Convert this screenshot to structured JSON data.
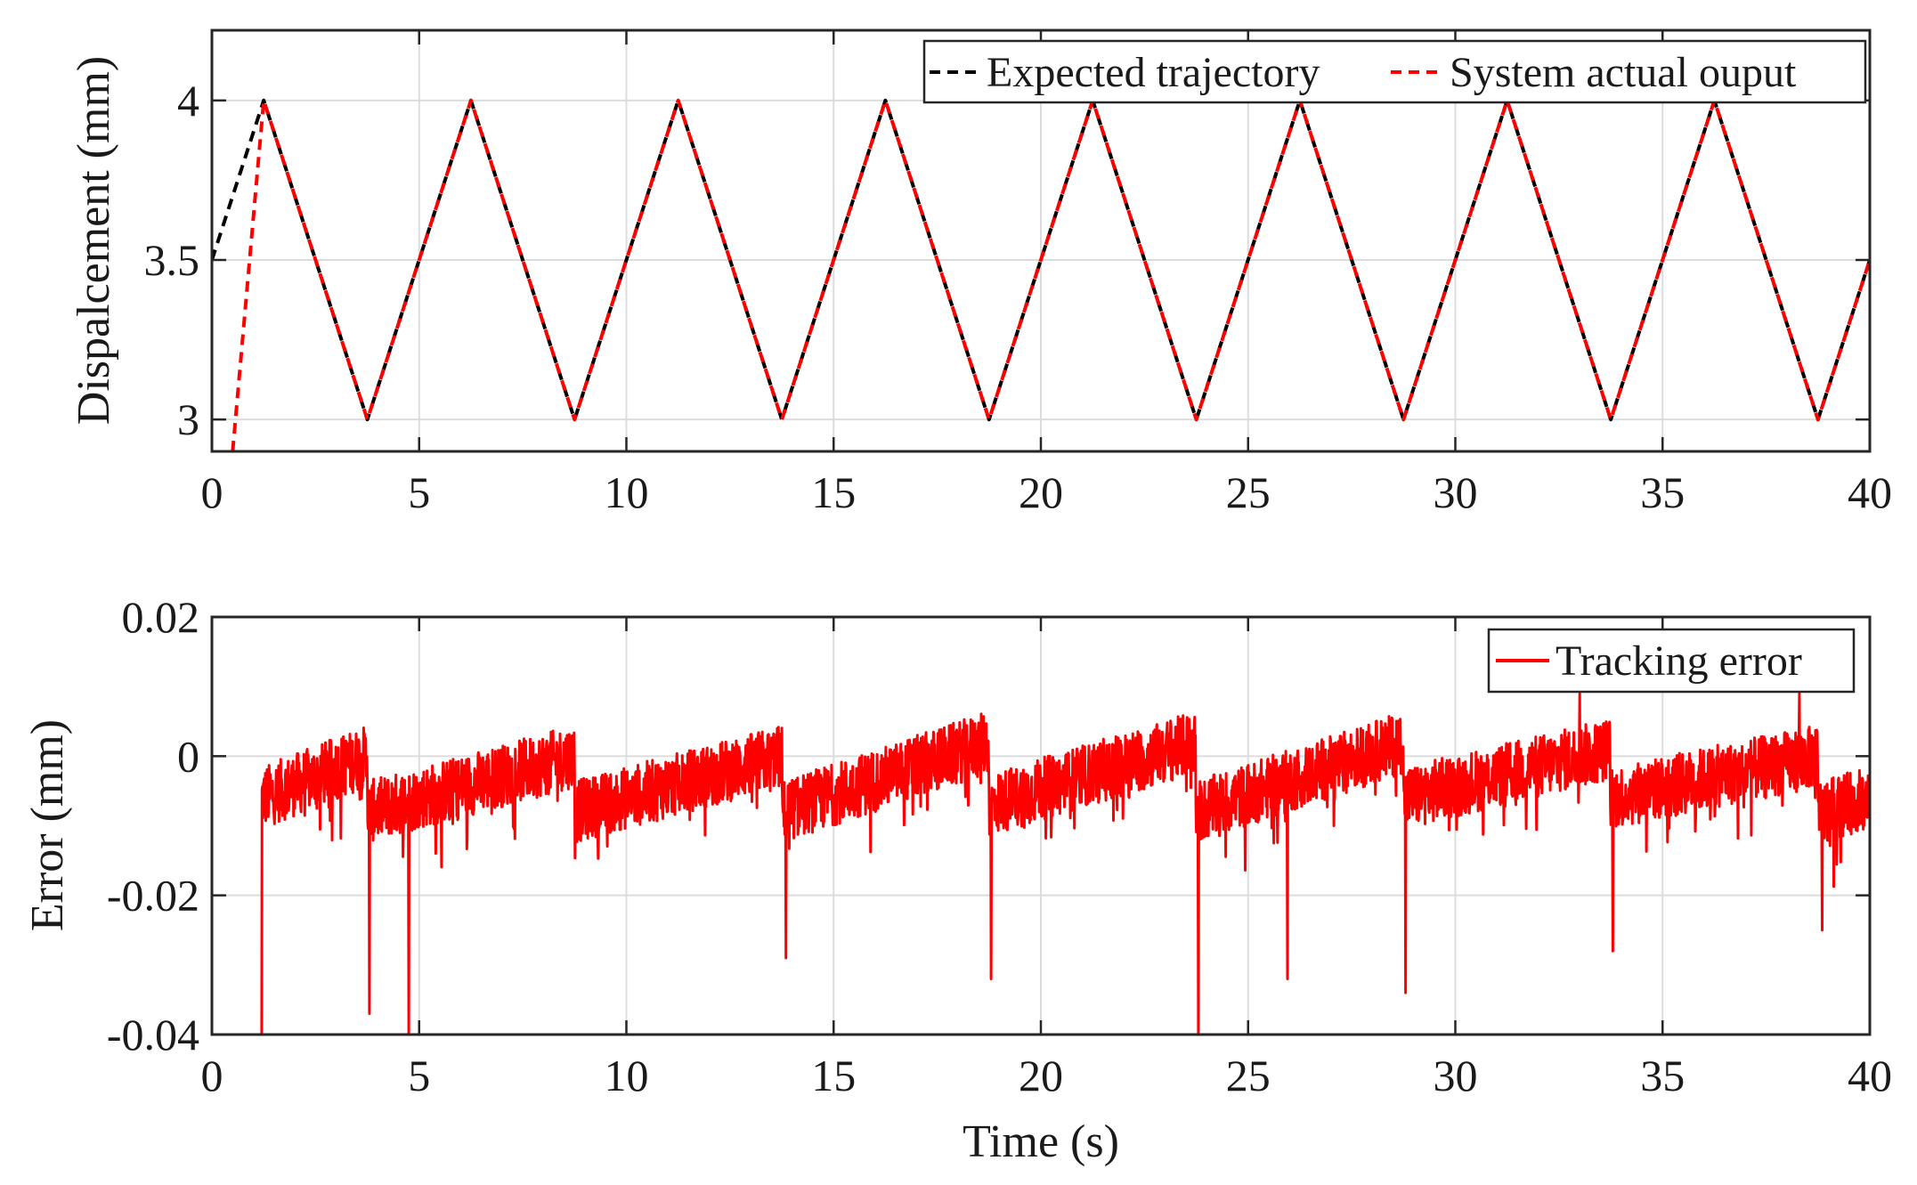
{
  "chart_data": [
    {
      "type": "line",
      "ylabel": "Dispalcement (mm)",
      "xlabel": "",
      "xlim": [
        0,
        40
      ],
      "ylim": [
        2.9,
        4.22
      ],
      "xticks": [
        0,
        5,
        10,
        15,
        20,
        25,
        30,
        35,
        40
      ],
      "xtick_labels": [
        "0",
        "5",
        "10",
        "15",
        "20",
        "25",
        "30",
        "35",
        "40"
      ],
      "yticks": [
        3,
        3.5,
        4
      ],
      "ytick_labels": [
        "3",
        "3.5",
        "4"
      ],
      "grid": true,
      "legend_position": "top-right",
      "series": [
        {
          "name": "Expected trajectory",
          "color": "#000000",
          "style": "dashed",
          "x": [
            0,
            1.25,
            3.75,
            6.25,
            8.75,
            11.25,
            13.75,
            16.25,
            18.75,
            21.25,
            23.75,
            26.25,
            28.75,
            31.25,
            33.75,
            36.25,
            38.75,
            40
          ],
          "y": [
            3.5,
            4,
            3,
            4,
            3,
            4,
            3,
            4,
            3,
            4,
            3,
            4,
            3,
            4,
            3,
            4,
            3,
            3.5
          ]
        },
        {
          "name": "System actual ouput",
          "color": "#ff0000",
          "style": "dashed",
          "x": [
            0.5,
            1.25,
            3.75,
            6.25,
            8.75,
            11.25,
            13.75,
            16.25,
            18.75,
            21.25,
            23.75,
            26.25,
            28.75,
            31.25,
            33.75,
            36.25,
            38.75,
            40
          ],
          "y": [
            2.9,
            4,
            3,
            4,
            3,
            4,
            3,
            4,
            3,
            4,
            3,
            4,
            3,
            4,
            3,
            4,
            3,
            3.5
          ]
        }
      ]
    },
    {
      "type": "line",
      "ylabel": "Error (mm)",
      "xlabel": "Time (s)",
      "xlim": [
        0,
        40
      ],
      "ylim": [
        -0.04,
        0.02
      ],
      "xticks": [
        0,
        5,
        10,
        15,
        20,
        25,
        30,
        35,
        40
      ],
      "xtick_labels": [
        "0",
        "5",
        "10",
        "15",
        "20",
        "25",
        "30",
        "35",
        "40"
      ],
      "yticks": [
        -0.04,
        -0.02,
        0,
        0.02
      ],
      "ytick_labels": [
        "-0.04",
        "-0.02",
        "0",
        "0.02"
      ],
      "grid": true,
      "legend_position": "top-right",
      "series": [
        {
          "name": "Tracking error",
          "color": "#ff0000",
          "style": "solid",
          "x_start": 1.2,
          "x_end": 40,
          "period": 2.5,
          "noise_amplitude": 0.0045,
          "ramp_segments": [
            {
              "x_start": 1.2,
              "x_end": 3.75,
              "y_start": -0.006,
              "y_end": 0.0
            },
            {
              "x_start": 3.75,
              "x_end": 8.75,
              "y_start": -0.008,
              "y_end": 0.0
            },
            {
              "x_start": 8.75,
              "x_end": 13.75,
              "y_start": -0.008,
              "y_end": 0.0
            },
            {
              "x_start": 13.75,
              "x_end": 18.75,
              "y_start": -0.008,
              "y_end": 0.002
            },
            {
              "x_start": 18.75,
              "x_end": 23.75,
              "y_start": -0.007,
              "y_end": 0.002
            },
            {
              "x_start": 23.75,
              "x_end": 28.75,
              "y_start": -0.008,
              "y_end": 0.002
            },
            {
              "x_start": 28.75,
              "x_end": 33.75,
              "y_start": -0.006,
              "y_end": 0.001
            },
            {
              "x_start": 33.75,
              "x_end": 38.75,
              "y_start": -0.006,
              "y_end": 0.0
            },
            {
              "x_start": 38.75,
              "x_end": 40,
              "y_start": -0.008,
              "y_end": -0.006
            }
          ],
          "spikes": [
            {
              "x": 1.2,
              "y": -0.04
            },
            {
              "x": 3.8,
              "y": -0.037
            },
            {
              "x": 4.75,
              "y": -0.04
            },
            {
              "x": 13.85,
              "y": -0.029
            },
            {
              "x": 18.8,
              "y": -0.032
            },
            {
              "x": 23.8,
              "y": -0.04
            },
            {
              "x": 25.95,
              "y": -0.032
            },
            {
              "x": 28.8,
              "y": -0.034
            },
            {
              "x": 33.8,
              "y": -0.028
            },
            {
              "x": 38.85,
              "y": -0.025
            },
            {
              "x": 33.0,
              "y": 0.009
            },
            {
              "x": 38.3,
              "y": 0.009
            }
          ]
        }
      ]
    }
  ]
}
